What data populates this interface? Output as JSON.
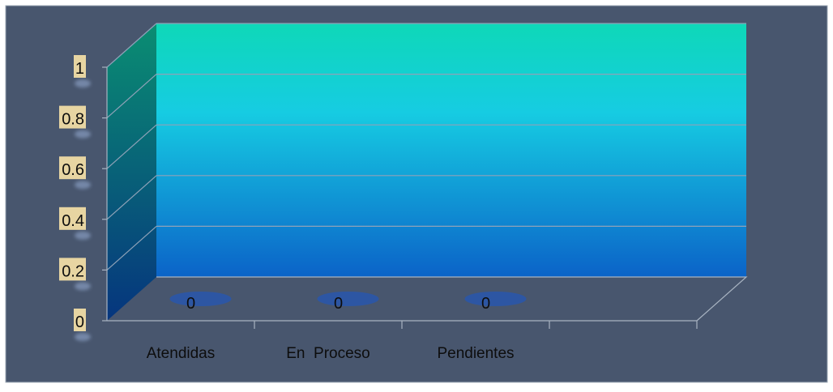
{
  "colors": {
    "background": "#48566E",
    "wall_top": "#0ED8B8",
    "wall_mid": "#16CCE2",
    "wall_bottom": "#0B63C8",
    "side_top": "#0A8E72",
    "side_bottom": "#06357E",
    "gridline": "#8FA2B8",
    "axis": "#A9B4C2",
    "tick_label_bg": "#F0DCA4",
    "bar_base": "#2A56A8",
    "label_text": "#0D0D0D"
  },
  "chart_data": {
    "type": "bar",
    "title": "",
    "xlabel": "",
    "ylabel": "",
    "categories": [
      "Atendidas",
      "En  Proceso",
      "Pendientes"
    ],
    "values": [
      0,
      0,
      0
    ],
    "data_labels": [
      "0",
      "0",
      "0"
    ],
    "ylim": [
      0,
      1
    ],
    "yticks": [
      0,
      0.2,
      0.4,
      0.6,
      0.8,
      1
    ],
    "ytick_labels": [
      "0",
      "0.2",
      "0.4",
      "0.6",
      "0.8",
      "1"
    ],
    "grid": true,
    "legend": "none",
    "style": "3d"
  }
}
